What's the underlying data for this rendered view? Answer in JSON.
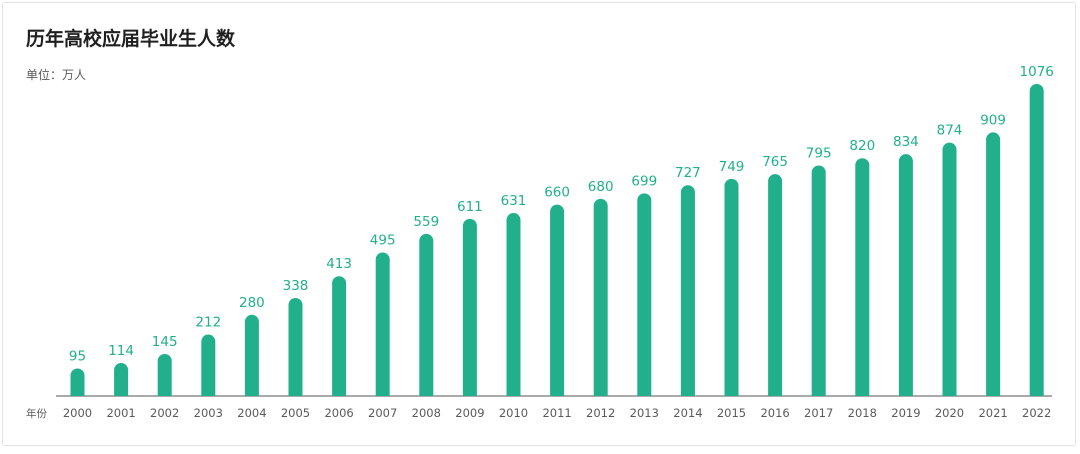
{
  "chart_data": {
    "type": "bar",
    "title": "历年高校应届毕业生人数",
    "unit_label": "单位：万人",
    "xlabel": "年份",
    "ylabel": "",
    "categories": [
      "2000",
      "2001",
      "2002",
      "2003",
      "2004",
      "2005",
      "2006",
      "2007",
      "2008",
      "2009",
      "2010",
      "2011",
      "2012",
      "2013",
      "2014",
      "2015",
      "2016",
      "2017",
      "2018",
      "2019",
      "2020",
      "2021",
      "2022"
    ],
    "values": [
      95,
      114,
      145,
      212,
      280,
      338,
      413,
      495,
      559,
      611,
      631,
      660,
      680,
      699,
      727,
      749,
      765,
      795,
      820,
      834,
      874,
      909,
      1076
    ],
    "ylim": [
      0,
      1076
    ],
    "bar_color": "#22b08c",
    "label_color": "#22b08c",
    "grid": false
  }
}
